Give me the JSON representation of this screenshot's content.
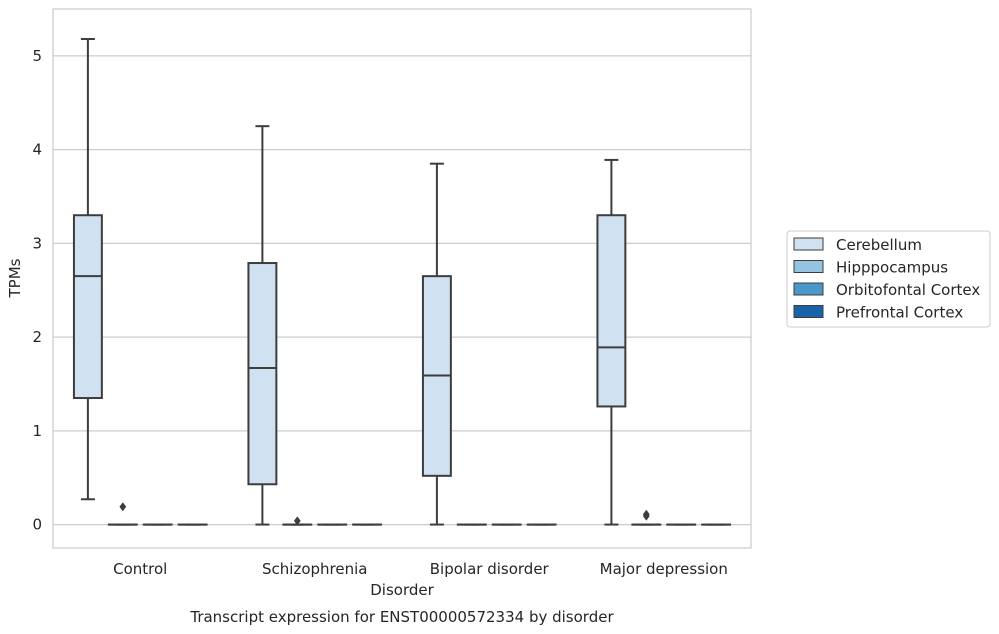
{
  "chart_data": {
    "type": "box",
    "xlabel": "Disorder",
    "ylabel": "TPMs",
    "caption": "Transcript expression for ENST00000572334 by disorder",
    "ylim": [
      -0.25,
      5.5
    ],
    "yticks": [
      0,
      1,
      2,
      3,
      4,
      5
    ],
    "grid": true,
    "legend_placement": "right",
    "categories": [
      "Control",
      "Schizophrenia",
      "Bipolar disorder",
      "Major depression"
    ],
    "series": [
      {
        "name": "Cerebellum",
        "color": "#d0e1f2",
        "boxes": [
          {
            "whislo": 0.27,
            "q1": 1.35,
            "med": 2.65,
            "q3": 3.3,
            "whishi": 5.18,
            "fliers": []
          },
          {
            "whislo": 0.0,
            "q1": 0.43,
            "med": 1.67,
            "q3": 2.79,
            "whishi": 4.25,
            "fliers": []
          },
          {
            "whislo": 0.0,
            "q1": 0.52,
            "med": 1.59,
            "q3": 2.65,
            "whishi": 3.85,
            "fliers": []
          },
          {
            "whislo": 0.0,
            "q1": 1.26,
            "med": 1.89,
            "q3": 3.3,
            "whishi": 3.89,
            "fliers": []
          }
        ]
      },
      {
        "name": "Hipppocampus",
        "color": "#94c4df",
        "boxes": [
          {
            "whislo": 0.0,
            "q1": 0.0,
            "med": 0.0,
            "q3": 0.0,
            "whishi": 0.0,
            "fliers": [
              0.19
            ]
          },
          {
            "whislo": 0.0,
            "q1": 0.0,
            "med": 0.0,
            "q3": 0.0,
            "whishi": 0.0,
            "fliers": [
              0.04
            ]
          },
          {
            "whislo": 0.0,
            "q1": 0.0,
            "med": 0.0,
            "q3": 0.0,
            "whishi": 0.0,
            "fliers": []
          },
          {
            "whislo": 0.0,
            "q1": 0.0,
            "med": 0.0,
            "q3": 0.0,
            "whishi": 0.0,
            "fliers": [
              0.09,
              0.11
            ]
          }
        ]
      },
      {
        "name": "Orbitofontal Cortex",
        "color": "#4a98c9",
        "boxes": [
          {
            "whislo": 0.0,
            "q1": 0.0,
            "med": 0.0,
            "q3": 0.0,
            "whishi": 0.0,
            "fliers": []
          },
          {
            "whislo": 0.0,
            "q1": 0.0,
            "med": 0.0,
            "q3": 0.0,
            "whishi": 0.0,
            "fliers": []
          },
          {
            "whislo": 0.0,
            "q1": 0.0,
            "med": 0.0,
            "q3": 0.0,
            "whishi": 0.0,
            "fliers": []
          },
          {
            "whislo": 0.0,
            "q1": 0.0,
            "med": 0.0,
            "q3": 0.0,
            "whishi": 0.0,
            "fliers": []
          }
        ]
      },
      {
        "name": "Prefrontal Cortex",
        "color": "#1764ab",
        "boxes": [
          {
            "whislo": 0.0,
            "q1": 0.0,
            "med": 0.0,
            "q3": 0.0,
            "whishi": 0.0,
            "fliers": []
          },
          {
            "whislo": 0.0,
            "q1": 0.0,
            "med": 0.0,
            "q3": 0.0,
            "whishi": 0.0,
            "fliers": []
          },
          {
            "whislo": 0.0,
            "q1": 0.0,
            "med": 0.0,
            "q3": 0.0,
            "whishi": 0.0,
            "fliers": []
          },
          {
            "whislo": 0.0,
            "q1": 0.0,
            "med": 0.0,
            "q3": 0.0,
            "whishi": 0.0,
            "fliers": []
          }
        ]
      }
    ]
  }
}
